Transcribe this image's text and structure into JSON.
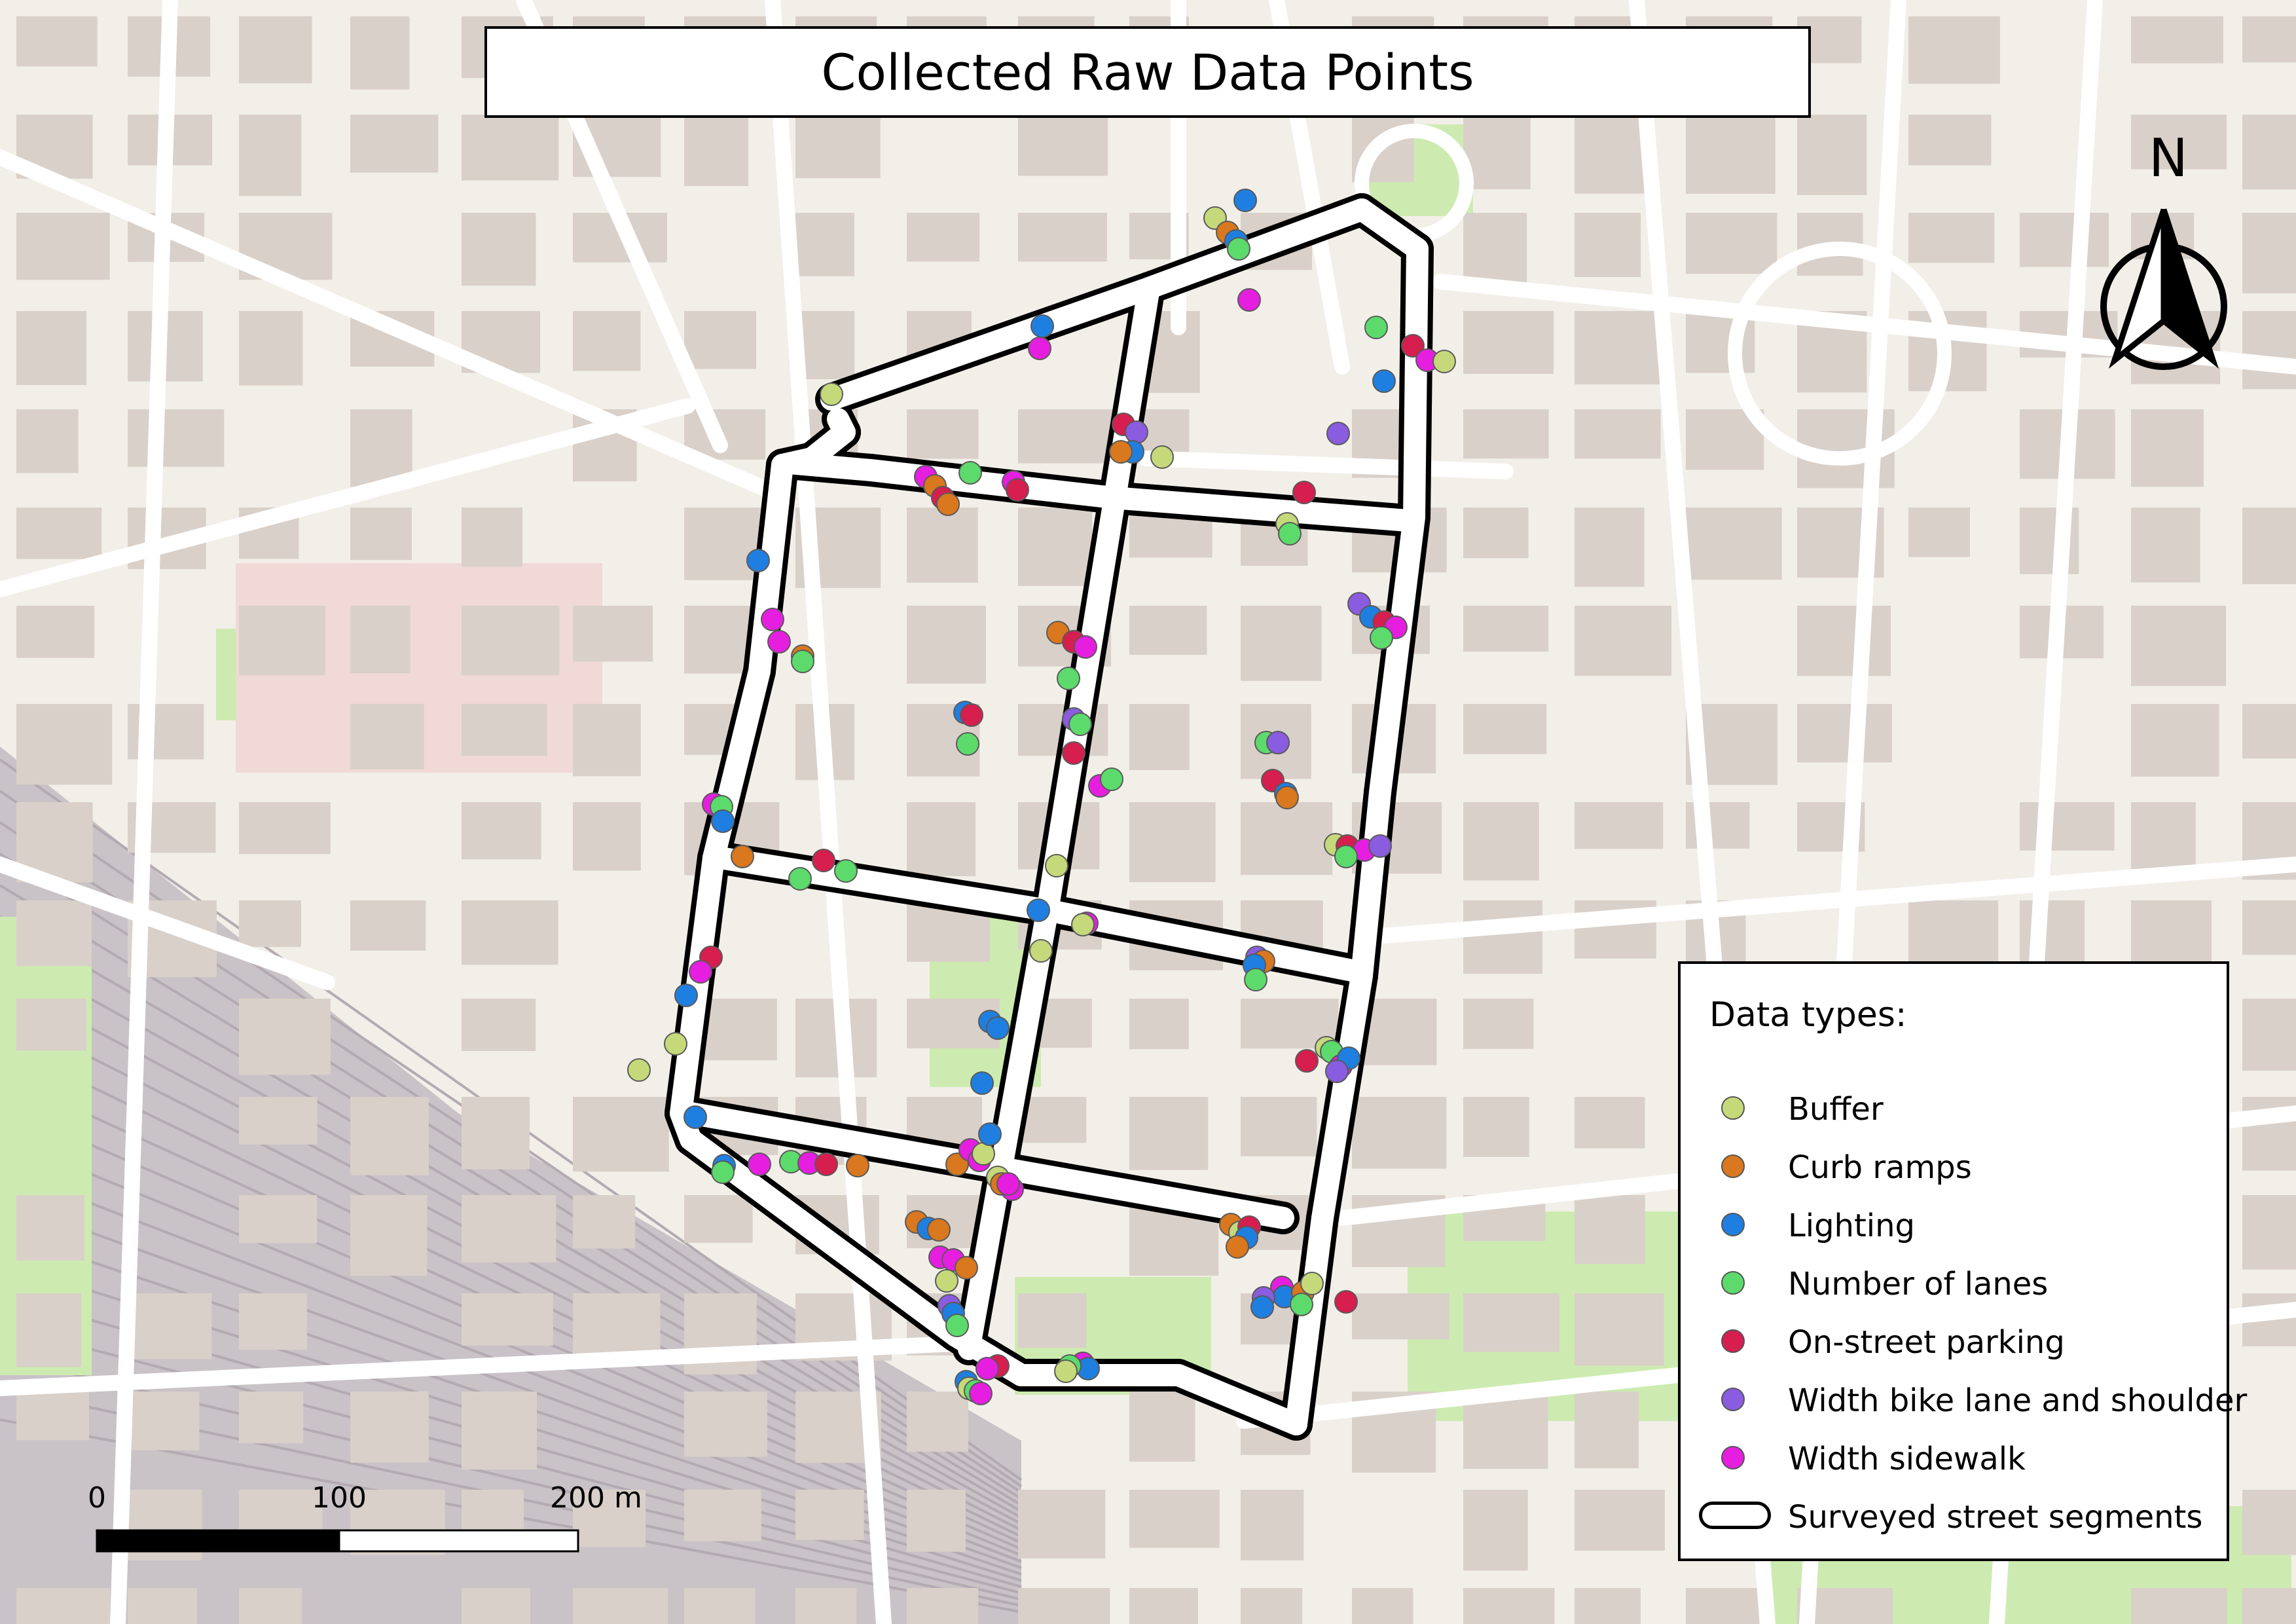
{
  "title": "Collected Raw Data Points",
  "north_arrow": {
    "label": "N",
    "icon": "north-arrow-icon"
  },
  "scale_bar": {
    "labels": [
      "0",
      "100",
      "200 m"
    ]
  },
  "legend": {
    "title": "Data types:",
    "items": [
      {
        "key": "buffer",
        "label": "Buffer",
        "color": "#c5d97a"
      },
      {
        "key": "curb",
        "label": "Curb ramps",
        "color": "#d9781e"
      },
      {
        "key": "lighting",
        "label": "Lighting",
        "color": "#1f7fe0"
      },
      {
        "key": "lanes",
        "label": "Number of lanes",
        "color": "#5cdb6c"
      },
      {
        "key": "parking",
        "label": "On-street parking",
        "color": "#d61e4f"
      },
      {
        "key": "bike",
        "label": "Width bike lane and shoulder",
        "color": "#8a5ce0"
      },
      {
        "key": "sidewalk",
        "label": "Width sidewalk",
        "color": "#e61ee0"
      }
    ],
    "segments_label": "Surveyed street segments"
  },
  "basemap": {
    "land_color": "#f2efe9",
    "building_color": "#d9d0c9",
    "road_color": "#ffffff",
    "park_color": "#cdebb0",
    "rail_color": "#c9c2c7"
  }
}
